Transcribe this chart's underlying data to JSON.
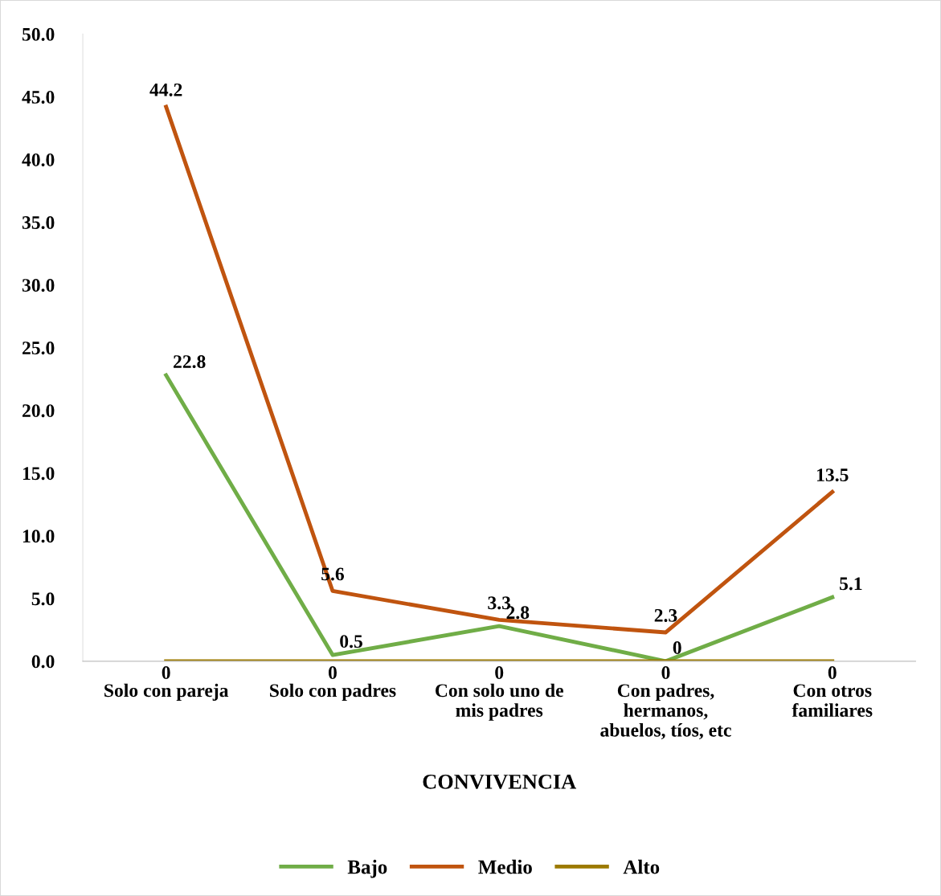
{
  "chart_data": {
    "type": "line",
    "xlabel": "CONVIVENCIA",
    "categories": [
      "Solo con pareja",
      "Solo con padres",
      "Con solo uno de\nmis padres",
      "Con padres,\nhermanos,\nabuelos, tíos, etc",
      "Con otros\nfamiliares"
    ],
    "series": [
      {
        "name": "Bajo",
        "color": "#70ad47",
        "values": [
          22.8,
          0.5,
          2.8,
          0,
          5.1
        ]
      },
      {
        "name": "Medio",
        "color": "#c0540f",
        "values": [
          44.2,
          5.6,
          3.3,
          2.3,
          13.5
        ]
      },
      {
        "name": "Alto",
        "color": "#9c7a00",
        "values": [
          0,
          0,
          0,
          0,
          0
        ]
      }
    ],
    "ylim": [
      0,
      50
    ],
    "yticks": [
      {
        "value": 0,
        "label": "0.0"
      },
      {
        "value": 5,
        "label": "5.0"
      },
      {
        "value": 10,
        "label": "10.0"
      },
      {
        "value": 15,
        "label": "15.0"
      },
      {
        "value": 20,
        "label": "20.0"
      },
      {
        "value": 25,
        "label": "25.0"
      },
      {
        "value": 30,
        "label": "30.0"
      },
      {
        "value": 35,
        "label": "35.0"
      },
      {
        "value": 40,
        "label": "40.0"
      },
      {
        "value": 45,
        "label": "45.0"
      },
      {
        "value": 50,
        "label": "50.0"
      }
    ],
    "data_labels": true,
    "grid": false,
    "legend": "bottom",
    "marker": "none",
    "line_style": "solid"
  }
}
